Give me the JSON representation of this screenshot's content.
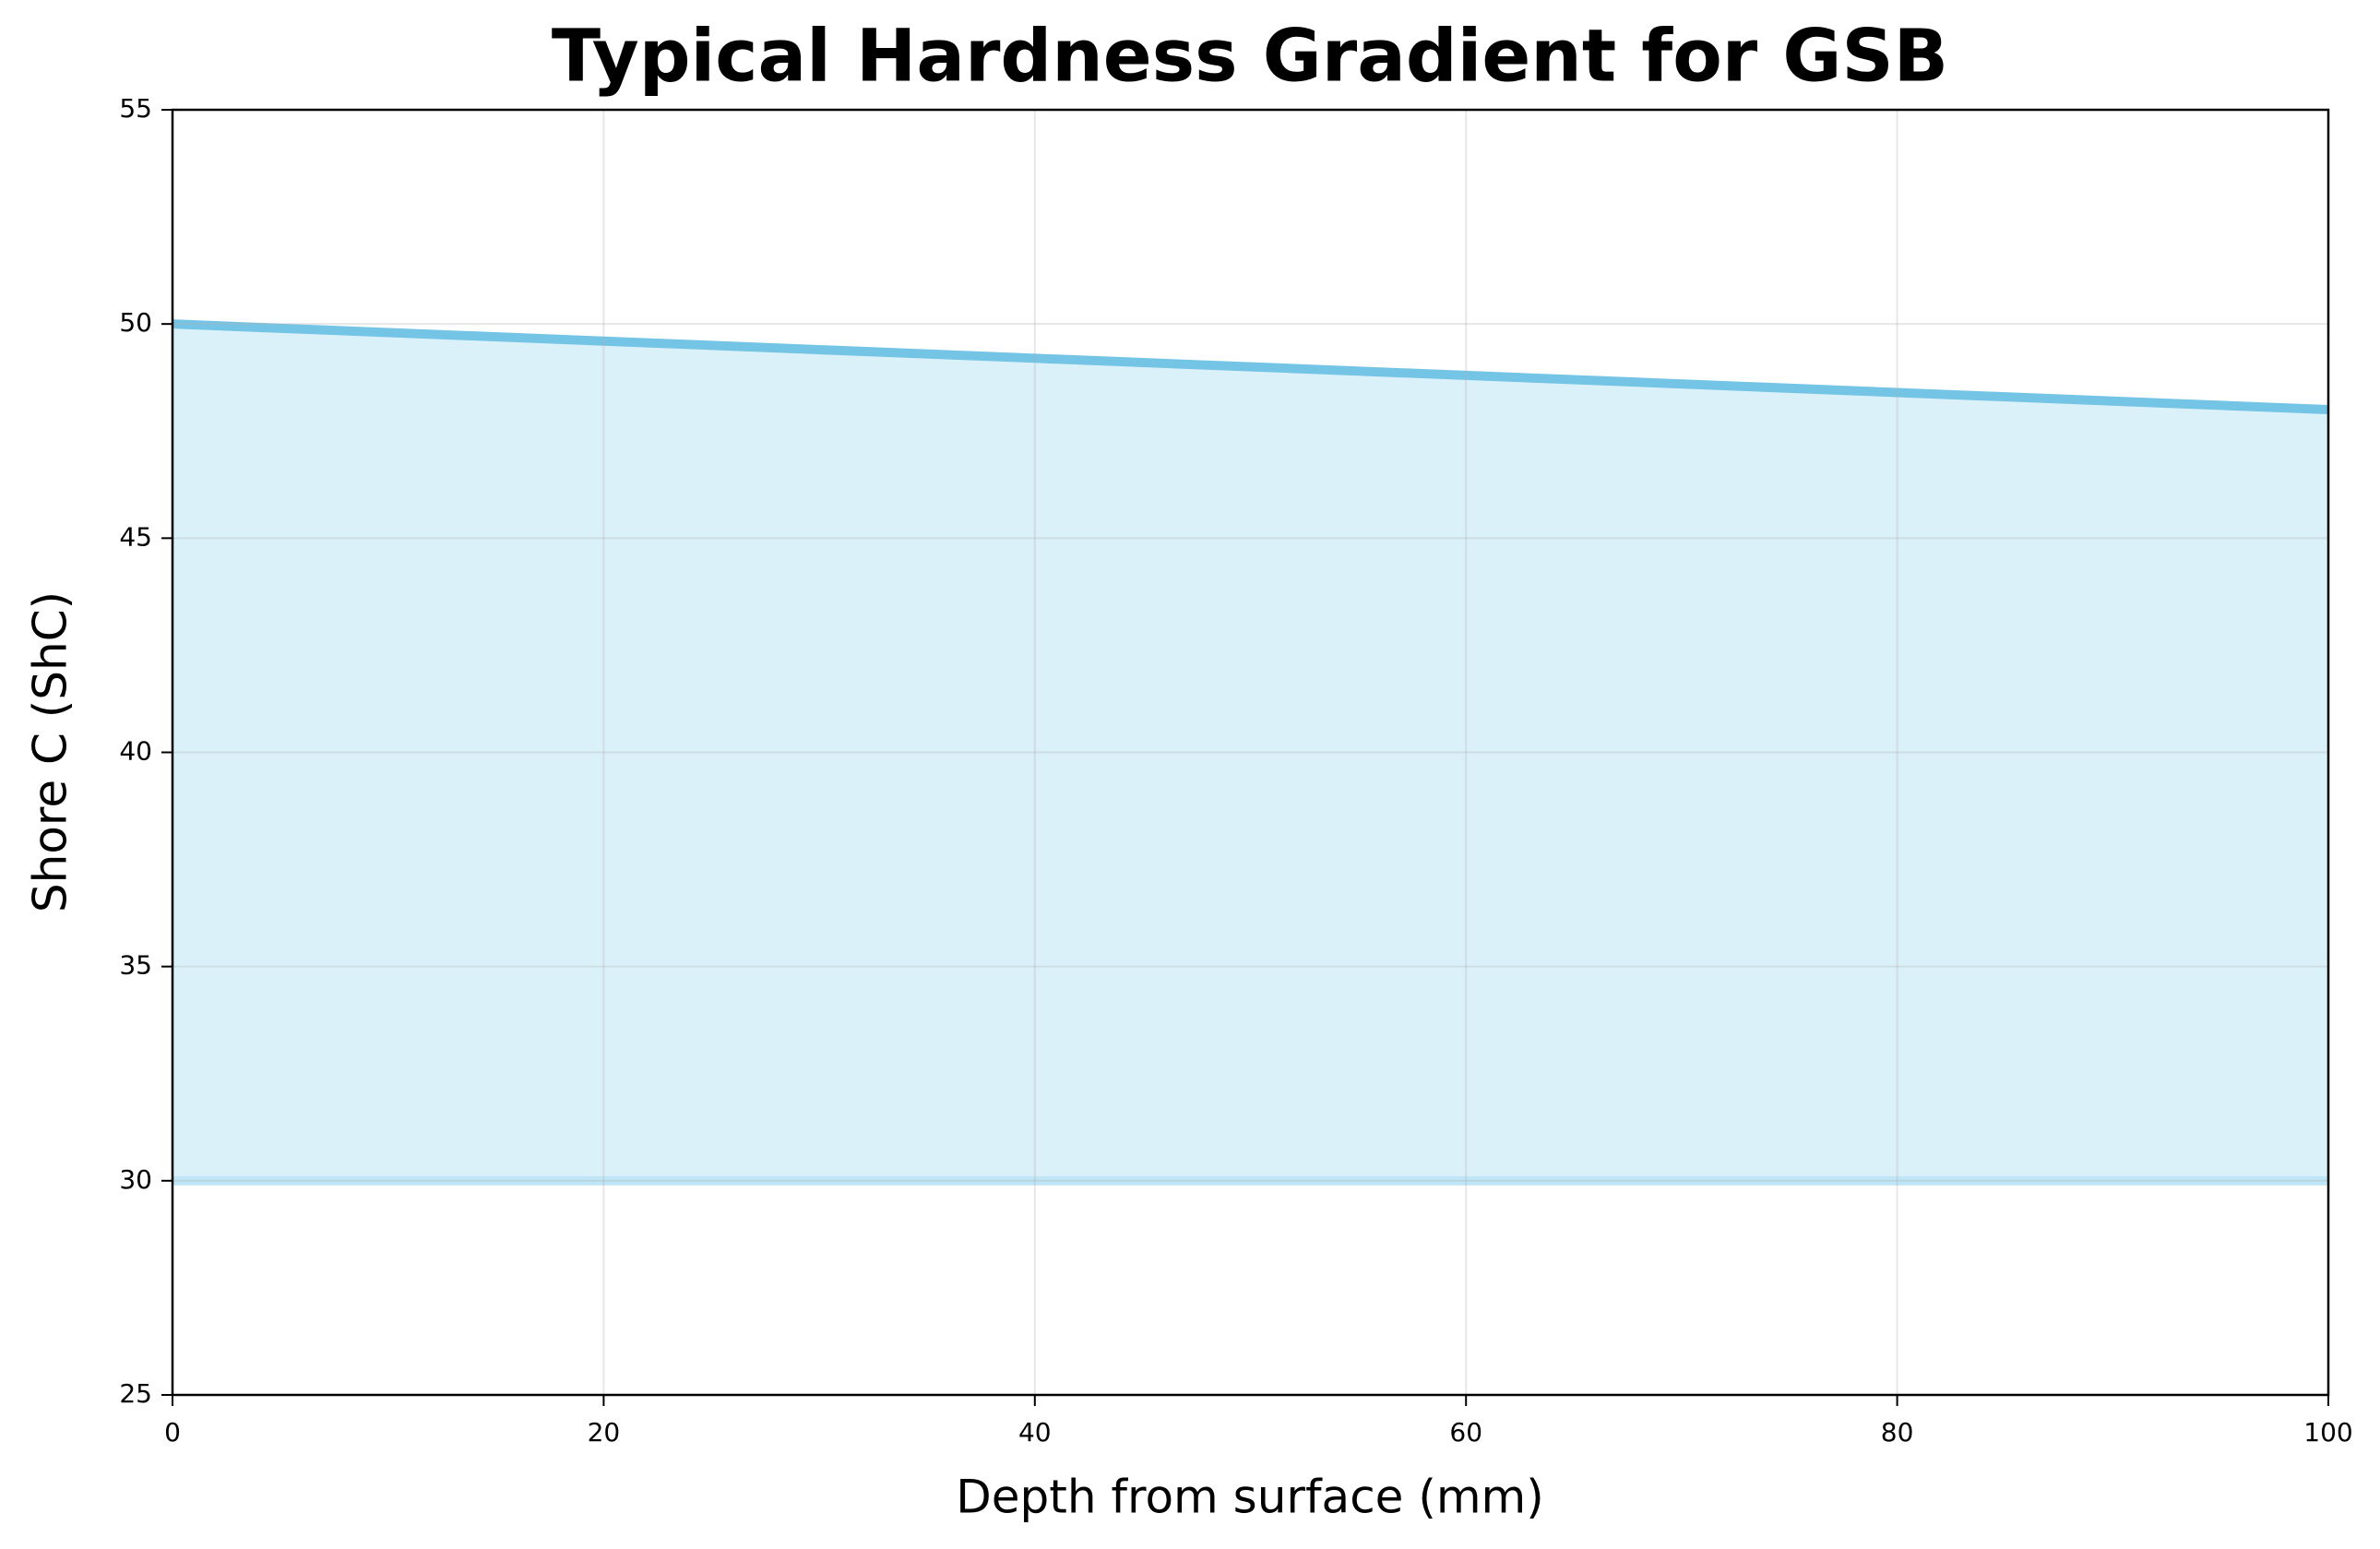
{
  "chart_data": {
    "type": "area",
    "title": "Typical Hardness Gradient for GSB",
    "x_label": "Depth from surface (mm)",
    "y_label": "Shore C (ShC)",
    "x": [
      0,
      20,
      40,
      60,
      80,
      100
    ],
    "series": [
      {
        "color": "#74c4e6",
        "values": [
          50,
          49.6,
          49.2,
          48.8,
          48.4,
          48
        ]
      },
      {
        "color": "#bfe6f7",
        "values": [
          30,
          30,
          30,
          30,
          30,
          30
        ]
      }
    ],
    "fill_color": "#dbf1fa",
    "xlim": [
      0,
      100
    ],
    "xticks": [
      0,
      20,
      40,
      60,
      80,
      100
    ],
    "ylim": [
      25,
      55
    ],
    "yticks": [
      25,
      30,
      35,
      40,
      45,
      50,
      55
    ],
    "grid": true
  }
}
